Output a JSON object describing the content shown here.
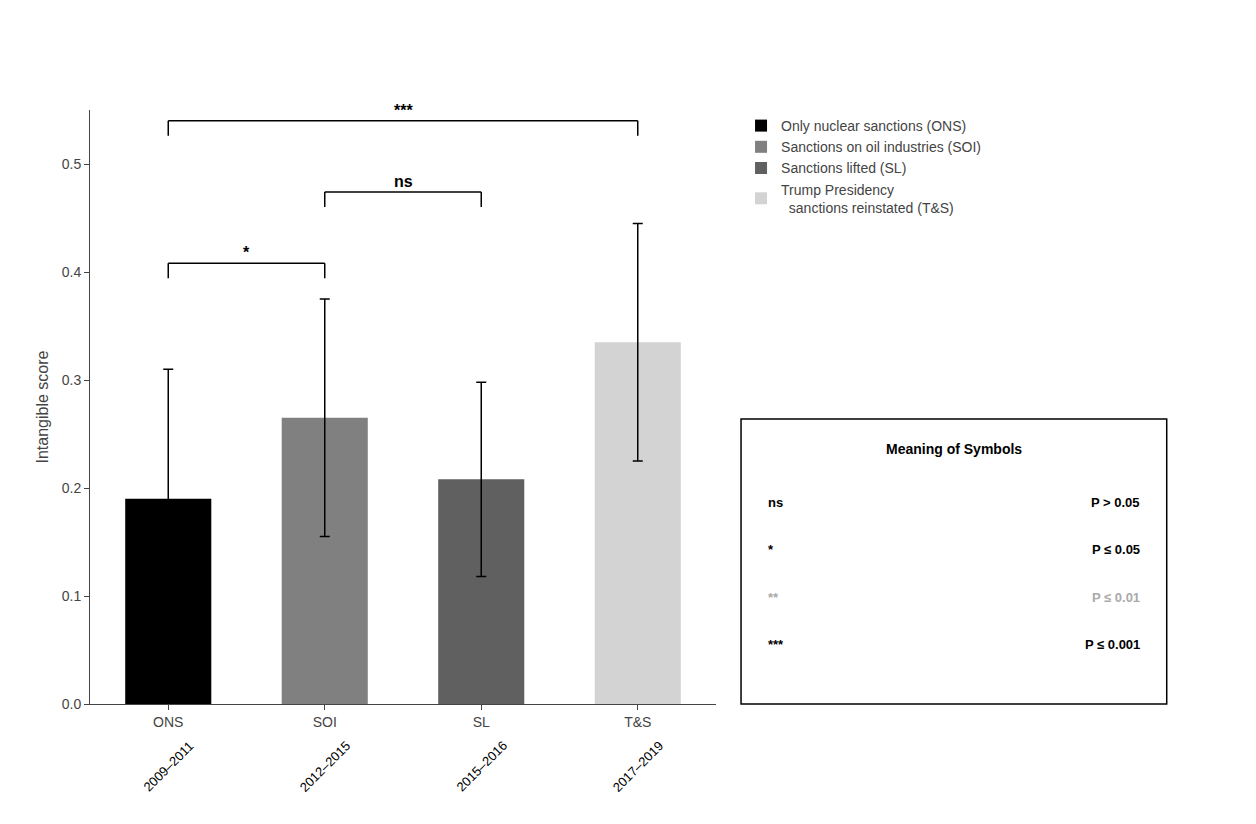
{
  "chart_data": {
    "type": "bar",
    "categories": [
      "ONS",
      "SOI",
      "SL",
      "T&S"
    ],
    "category_sublabels": [
      "2009–2011",
      "2012–2015",
      "2015–2016",
      "2017–2019"
    ],
    "series": [
      {
        "name": "Only nuclear sanctions (ONS)",
        "color": "#000000",
        "values": [
          0.19,
          null,
          null,
          null
        ],
        "errors": [
          0.12,
          null,
          null,
          null
        ]
      },
      {
        "name": "Sanctions on oil industries (SOI)",
        "color": "#808080",
        "values": [
          null,
          0.265,
          null,
          null
        ],
        "errors": [
          null,
          0.11,
          null,
          null
        ]
      },
      {
        "name": "Sanctions lifted (SL)",
        "color": "#606060",
        "values": [
          null,
          null,
          0.208,
          null
        ],
        "errors": [
          null,
          null,
          0.09,
          null
        ]
      },
      {
        "name": "Trump Presidency\n  sanctions reinstated (T&S)",
        "color": "#d3d3d3",
        "values": [
          null,
          null,
          null,
          0.335
        ],
        "errors": [
          null,
          null,
          null,
          0.11
        ]
      }
    ],
    "ylabel": "Intangible score",
    "ylim": [
      0.0,
      0.55
    ],
    "yticks": [
      {
        "value": 0.0,
        "label": "0.0"
      },
      0.1,
      0.2,
      0.3,
      0.4,
      0.5
    ],
    "grid": false,
    "legend": "right",
    "annotations": [
      {
        "x1": "ONS",
        "x2": "SOI",
        "text": "*"
      },
      {
        "x1": "SOI",
        "x2": "SL",
        "text": "ns"
      },
      {
        "x1": "ONS",
        "x2": "T&S",
        "text": "***"
      }
    ],
    "symbol_box": {
      "title": "Meaning of Symbols",
      "rows": [
        {
          "symbol": "ns",
          "text": "P > 0.05",
          "color": "#000000"
        },
        {
          "symbol": "*",
          "text": "P ≤ 0.05",
          "color": "#000000"
        },
        {
          "symbol": "**",
          "text": "P ≤ 0.01",
          "color": "#aaaaaa"
        },
        {
          "symbol": "***",
          "text": "P ≤ 0.001",
          "color": "#000000"
        }
      ]
    }
  }
}
